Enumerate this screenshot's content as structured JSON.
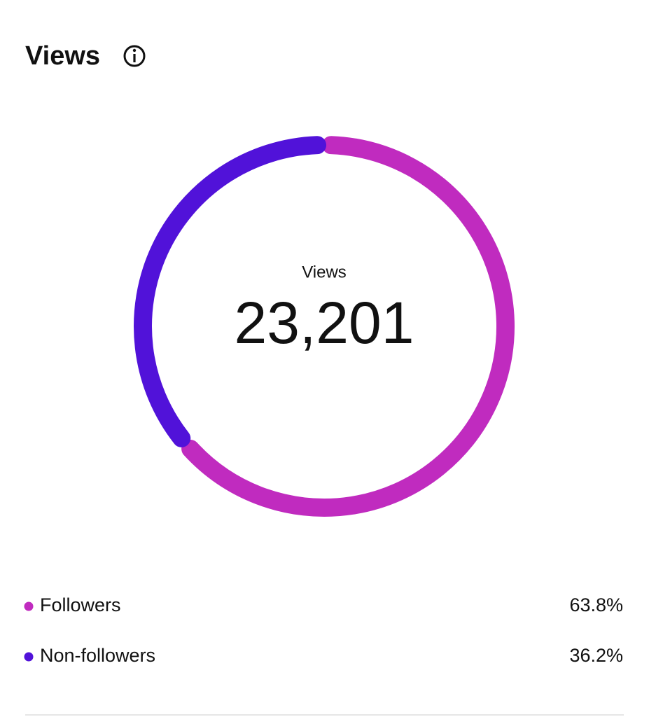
{
  "chart_data": {
    "type": "donut",
    "title": "Views",
    "center_label": "Views",
    "total": {
      "value": 23201,
      "label": "23,201"
    },
    "categories": [
      "Followers",
      "Non-followers"
    ],
    "values": [
      63.8,
      36.2
    ],
    "value_labels": [
      "63.8%",
      "36.2%"
    ],
    "colors": [
      "#c02bbf",
      "#5112d9"
    ]
  }
}
